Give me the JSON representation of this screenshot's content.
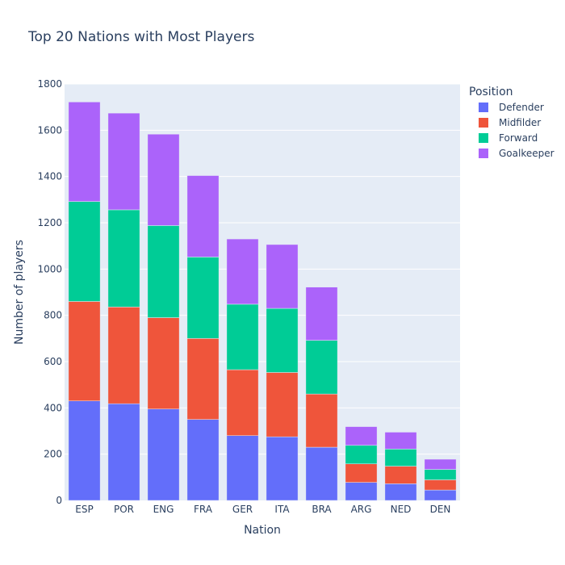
{
  "chart_data": {
    "type": "bar",
    "stacked": true,
    "title": "Top 20 Nations with Most Players",
    "xlabel": "Nation",
    "ylabel": "Number of players",
    "ylim": [
      0,
      1800
    ],
    "yticks": [
      0,
      200,
      400,
      600,
      800,
      1000,
      1200,
      1400,
      1600,
      1800
    ],
    "grid": true,
    "legend_title": "Position",
    "legend_position": "top-right",
    "categories": [
      "ESP",
      "POR",
      "ENG",
      "FRA",
      "GER",
      "ITA",
      "BRA",
      "ARG",
      "NED",
      "DEN"
    ],
    "series": [
      {
        "name": "Defender",
        "color": "#636efa",
        "values": [
          430,
          418,
          395,
          350,
          280,
          275,
          230,
          78,
          72,
          45
        ]
      },
      {
        "name": "Midfilder",
        "color": "#ef553b",
        "values": [
          430,
          418,
          395,
          350,
          285,
          278,
          230,
          80,
          76,
          44
        ]
      },
      {
        "name": "Forward",
        "color": "#00cc96",
        "values": [
          432,
          420,
          398,
          352,
          283,
          277,
          232,
          80,
          74,
          45
        ]
      },
      {
        "name": "Goalkeeper",
        "color": "#ab63fa",
        "values": [
          430,
          418,
          395,
          352,
          282,
          276,
          230,
          81,
          73,
          44
        ]
      }
    ]
  }
}
